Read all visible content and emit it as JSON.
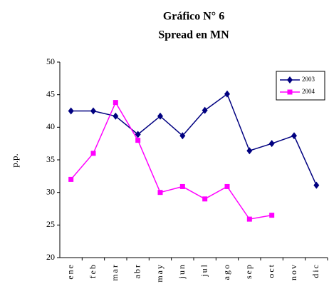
{
  "chart_data": {
    "type": "line",
    "title": "Gráfico N° 6",
    "subtitle": "Spread en MN",
    "y_label": "p.p.",
    "categories": [
      "ene",
      "feb",
      "mar",
      "abr",
      "may",
      "jun",
      "jul",
      "ago",
      "sep",
      "oct",
      "nov",
      "dic"
    ],
    "series": [
      {
        "name": "2003",
        "color": "#000080",
        "marker": "diamond",
        "values": [
          42.5,
          42.5,
          41.7,
          38.9,
          41.7,
          38.7,
          42.6,
          45.1,
          36.4,
          37.5,
          38.7,
          31.1
        ]
      },
      {
        "name": "2004",
        "color": "#ff00ff",
        "marker": "square",
        "values": [
          32,
          36,
          43.8,
          38,
          30,
          30.9,
          29,
          30.9,
          25.9,
          26.5,
          null,
          null
        ]
      }
    ],
    "ylim": [
      20,
      50
    ],
    "yticks": [
      20,
      25,
      30,
      35,
      40,
      45,
      50
    ],
    "grid": false,
    "legend": "upper right"
  }
}
